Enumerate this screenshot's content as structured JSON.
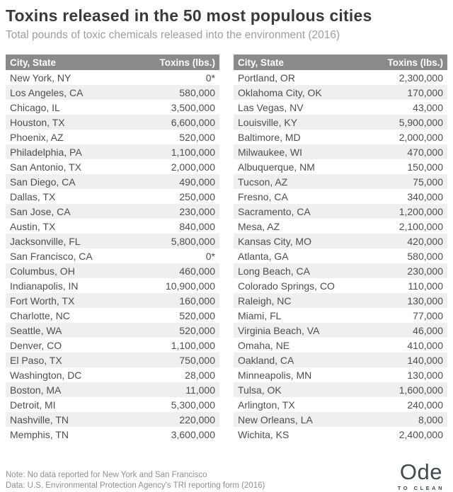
{
  "header": {
    "title": "Toxins released in the 50 most populous cities",
    "subtitle": "Total pounds of toxic chemicals released into the environment (2016)"
  },
  "chart_data": {
    "type": "table",
    "title": "Toxins released in the 50 most populous cities",
    "subtitle": "Total pounds of toxic chemicals released into the environment (2016)",
    "columns": [
      "City, State",
      "Toxins (lbs.)"
    ],
    "tables": [
      {
        "rows": [
          {
            "city": "New York, NY",
            "toxins": "0*"
          },
          {
            "city": "Los Angeles, CA",
            "toxins": "580,000"
          },
          {
            "city": "Chicago, IL",
            "toxins": "3,500,000"
          },
          {
            "city": "Houston, TX",
            "toxins": "6,600,000"
          },
          {
            "city": "Phoenix, AZ",
            "toxins": "520,000"
          },
          {
            "city": "Philadelphia, PA",
            "toxins": "1,100,000"
          },
          {
            "city": "San Antonio, TX",
            "toxins": "2,000,000"
          },
          {
            "city": "San Diego, CA",
            "toxins": "490,000"
          },
          {
            "city": "Dallas, TX",
            "toxins": "250,000"
          },
          {
            "city": "San Jose, CA",
            "toxins": "230,000"
          },
          {
            "city": "Austin, TX",
            "toxins": "840,000"
          },
          {
            "city": "Jacksonville, FL",
            "toxins": "5,800,000"
          },
          {
            "city": "San Francisco, CA",
            "toxins": "0*"
          },
          {
            "city": "Columbus, OH",
            "toxins": "460,000"
          },
          {
            "city": "Indianapolis, IN",
            "toxins": "10,900,000"
          },
          {
            "city": "Fort Worth, TX",
            "toxins": "160,000"
          },
          {
            "city": "Charlotte, NC",
            "toxins": "520,000"
          },
          {
            "city": "Seattle, WA",
            "toxins": "520,000"
          },
          {
            "city": "Denver, CO",
            "toxins": "1,100,000"
          },
          {
            "city": "El Paso, TX",
            "toxins": "750,000"
          },
          {
            "city": "Washington, DC",
            "toxins": "28,000"
          },
          {
            "city": "Boston, MA",
            "toxins": "11,000"
          },
          {
            "city": "Detroit, MI",
            "toxins": "5,300,000"
          },
          {
            "city": "Nashville, TN",
            "toxins": "220,000"
          },
          {
            "city": "Memphis, TN",
            "toxins": "3,600,000"
          }
        ]
      },
      {
        "rows": [
          {
            "city": "Portland, OR",
            "toxins": "2,300,000"
          },
          {
            "city": "Oklahoma City, OK",
            "toxins": "170,000"
          },
          {
            "city": "Las Vegas, NV",
            "toxins": "43,000"
          },
          {
            "city": "Louisville, KY",
            "toxins": "5,900,000"
          },
          {
            "city": "Baltimore, MD",
            "toxins": "2,000,000"
          },
          {
            "city": "Milwaukee, WI",
            "toxins": "470,000"
          },
          {
            "city": "Albuquerque, NM",
            "toxins": "150,000"
          },
          {
            "city": "Tucson, AZ",
            "toxins": "75,000"
          },
          {
            "city": "Fresno, CA",
            "toxins": "340,000"
          },
          {
            "city": "Sacramento, CA",
            "toxins": "1,200,000"
          },
          {
            "city": "Mesa, AZ",
            "toxins": "2,100,000"
          },
          {
            "city": "Kansas City, MO",
            "toxins": "420,000"
          },
          {
            "city": "Atlanta, GA",
            "toxins": "580,000"
          },
          {
            "city": "Long Beach, CA",
            "toxins": "230,000"
          },
          {
            "city": "Colorado Springs, CO",
            "toxins": "110,000"
          },
          {
            "city": "Raleigh, NC",
            "toxins": "130,000"
          },
          {
            "city": "Miami, FL",
            "toxins": "77,000"
          },
          {
            "city": "Virginia Beach, VA",
            "toxins": "46,000"
          },
          {
            "city": "Omaha, NE",
            "toxins": "410,000"
          },
          {
            "city": "Oakland, CA",
            "toxins": "140,000"
          },
          {
            "city": "Minneapolis, MN",
            "toxins": "130,000"
          },
          {
            "city": "Tulsa, OK",
            "toxins": "1,600,000"
          },
          {
            "city": "Arlington, TX",
            "toxins": "240,000"
          },
          {
            "city": "New Orleans, LA",
            "toxins": "8,000"
          },
          {
            "city": "Wichita, KS",
            "toxins": "2,400,000"
          }
        ]
      }
    ]
  },
  "footer": {
    "note": "Note: No data reported for New York and San Francisco",
    "source": "Data: U.S. Environmental Protection Agency's TRI reporting form (2016)"
  },
  "logo": {
    "word": "Ode",
    "tagline": "TO CLEAN"
  },
  "colors": {
    "header_bar": "#8a8a8a",
    "row_stripe": "#efefef",
    "title_text": "#3a3a3a",
    "subtitle_text": "#9e9e9e",
    "cell_text": "#4e4e4e",
    "note_text": "#8f8f8f",
    "logo_color": "#3e4b4f"
  }
}
